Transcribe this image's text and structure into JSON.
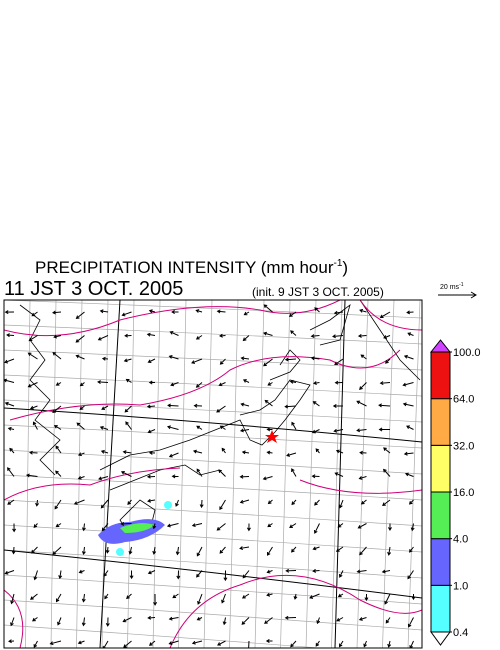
{
  "header": {
    "title": "PRECIPITATION INTENSITY (mm hour",
    "title_superscript": "-1",
    "title_close": ")",
    "valid_time": "11 JST 3 OCT. 2005",
    "init_time": "(init. 9 JST 3 OCT. 2005)"
  },
  "wind_scale": {
    "label": "20 ms",
    "superscript": "-1"
  },
  "legend": {
    "levels": [
      {
        "value": 0.4,
        "label": "0.4"
      },
      {
        "value": 1,
        "label": "1.0"
      },
      {
        "value": 4,
        "label": "4.0"
      },
      {
        "value": 16,
        "label": "16.0"
      },
      {
        "value": 32,
        "label": "32.0"
      },
      {
        "value": 64,
        "label": "64.0"
      },
      {
        "value": 100,
        "label": "100.0"
      }
    ],
    "colors": [
      "#55ffff",
      "#6666ff",
      "#55ee55",
      "#ffff66",
      "#ffaa44",
      "#ee1111"
    ],
    "over_color": "#cc44ff",
    "under_color": "#ffffff"
  }
}
